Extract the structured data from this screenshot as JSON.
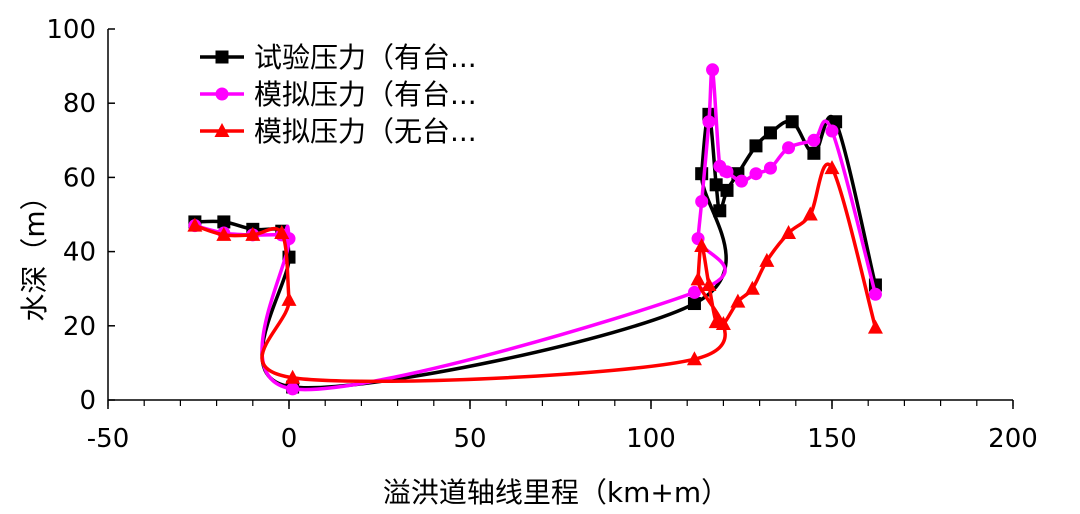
{
  "chart_data": {
    "type": "line",
    "xlabel": "溢洪道轴线里程（km+m）",
    "ylabel": "水深（m）",
    "xlim": [
      -50,
      200
    ],
    "ylim": [
      0,
      100
    ],
    "xticks": [
      -50,
      0,
      50,
      100,
      150,
      200
    ],
    "yticks": [
      0,
      20,
      40,
      60,
      80,
      100
    ],
    "x_minor_step": 10,
    "grid": false,
    "legend_position": "top-left",
    "series": [
      {
        "name": "试验压力（有台...",
        "color": "#000000",
        "marker": "square",
        "x": [
          -26,
          -18,
          -10,
          -2,
          0,
          1,
          112,
          114,
          116,
          118,
          119,
          121,
          124,
          129,
          133,
          139,
          145,
          151,
          162
        ],
        "y": [
          48,
          48,
          46,
          45.5,
          38.5,
          3.5,
          26,
          61,
          77,
          58,
          51,
          56.5,
          61,
          68.5,
          72,
          75,
          66.5,
          75,
          31
        ]
      },
      {
        "name": "模拟压力（有台...",
        "color": "#ff00ff",
        "marker": "circle",
        "x": [
          -26,
          -18,
          -10,
          -2,
          0,
          1,
          112,
          113,
          114,
          116,
          117,
          119,
          121,
          125,
          129,
          133,
          138,
          145,
          150,
          162
        ],
        "y": [
          47,
          45,
          44.5,
          44.5,
          43.5,
          3,
          29,
          43.5,
          53.5,
          75,
          89,
          63,
          61.5,
          59,
          61,
          62.5,
          68,
          70,
          72.5,
          28.5
        ]
      },
      {
        "name": "模拟压力（无台...",
        "color": "#ff0000",
        "marker": "triangle",
        "x": [
          -26,
          -18,
          -10,
          -2,
          0,
          1,
          112,
          113,
          114,
          116,
          118,
          120,
          124,
          128,
          132,
          138,
          144,
          150,
          162
        ],
        "y": [
          47,
          44.5,
          44.5,
          45,
          27,
          6,
          11,
          32.5,
          41.5,
          31,
          21,
          20.5,
          26.5,
          30,
          37.5,
          45,
          50,
          62.5,
          19.5
        ]
      }
    ]
  }
}
